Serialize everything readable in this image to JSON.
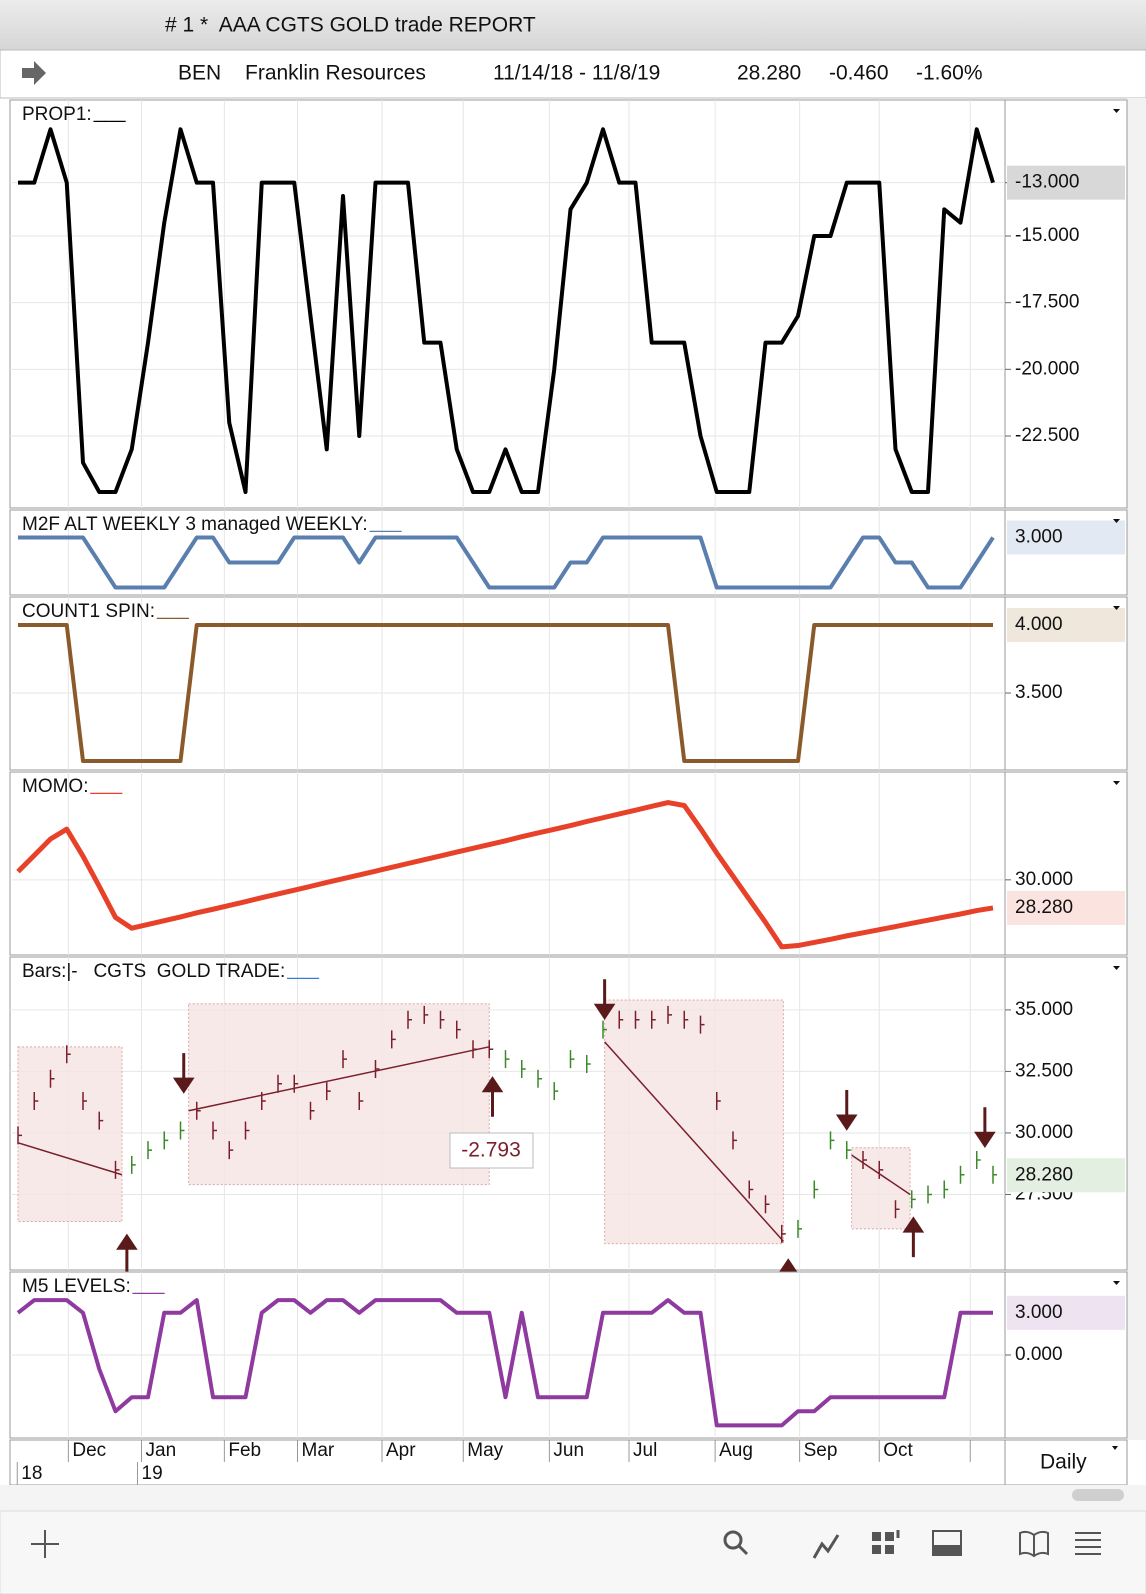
{
  "window": {
    "title": "# 1 *  AAA CGTS GOLD trade REPORT"
  },
  "header": {
    "symbol": "BEN",
    "name": "Franklin Resources",
    "range": "11/14/18 - 11/8/19",
    "last": "28.280",
    "change": "-0.460",
    "percent": "-1.60%"
  },
  "panels": [
    {
      "type": "line",
      "title": "PROP1:",
      "blank": "___",
      "color": "#000000",
      "current_bg": "#d8d8d8",
      "ylim": [
        -25.2,
        -9.9
      ],
      "yticks": [
        {
          "value": -13,
          "label": "-13.000"
        },
        {
          "value": -15,
          "label": "-15.000"
        },
        {
          "value": -17.5,
          "label": "-17.500"
        },
        {
          "value": -20,
          "label": "-20.000"
        },
        {
          "value": -22.5,
          "label": "-22.500"
        }
      ],
      "current": {
        "value": -13,
        "label": "-13.000"
      },
      "values": [
        -13,
        -13,
        -11,
        -13,
        -23.5,
        -24.6,
        -24.6,
        -23,
        -19,
        -14.5,
        -11,
        -13,
        -13,
        -22,
        -24.6,
        -13,
        -13,
        -13,
        -18,
        -23,
        -13.5,
        -22.5,
        -13,
        -13,
        -13,
        -19,
        -19,
        -23,
        -24.6,
        -24.6,
        -23,
        -24.6,
        -24.6,
        -20,
        -14,
        -13,
        -11,
        -13,
        -13,
        -19,
        -19,
        -19,
        -22.5,
        -24.6,
        -24.6,
        -24.6,
        -19,
        -19,
        -18,
        -15,
        -15,
        -13,
        -13,
        -13,
        -23,
        -24.6,
        -24.6,
        -14,
        -14.5,
        -11,
        -13
      ]
    },
    {
      "type": "line",
      "title": "M2F ALT WEEKLY 3 managed WEEKLY:",
      "blank": "___",
      "color": "#5a7fae",
      "current_bg": "#e3e9f2",
      "ylim": [
        0.7,
        4.1
      ],
      "yticks": [],
      "current": {
        "value": 3,
        "label": "3.000"
      },
      "values": [
        3,
        3,
        3,
        3,
        3,
        2,
        1,
        1,
        1,
        1,
        2,
        3,
        3,
        2,
        2,
        2,
        2,
        3,
        3,
        3,
        3,
        2,
        3,
        3,
        3,
        3,
        3,
        3,
        2,
        1,
        1,
        1,
        1,
        1,
        2,
        2,
        3,
        3,
        3,
        3,
        3,
        3,
        3,
        1,
        1,
        1,
        1,
        1,
        1,
        1,
        1,
        2,
        3,
        3,
        2,
        2,
        1,
        1,
        1,
        2,
        3
      ]
    },
    {
      "type": "line",
      "title": "COUNT1 SPIN:",
      "blank": "___",
      "color": "#8b5a2b",
      "current_bg": "#efe6dc",
      "ylim": [
        2.934,
        4.206
      ],
      "yticks": [
        {
          "value": 3.5,
          "label": "3.500"
        }
      ],
      "current": {
        "value": 4,
        "label": "4.000"
      },
      "values": [
        4,
        4,
        4,
        4,
        3,
        3,
        3,
        3,
        3,
        3,
        3,
        4,
        4,
        4,
        4,
        4,
        4,
        4,
        4,
        4,
        4,
        4,
        4,
        4,
        4,
        4,
        4,
        4,
        4,
        4,
        4,
        4,
        4,
        4,
        4,
        4,
        4,
        4,
        4,
        4,
        4,
        3,
        3,
        3,
        3,
        3,
        3,
        3,
        3,
        4,
        4,
        4,
        4,
        4,
        4,
        4,
        4,
        4,
        4,
        4,
        4
      ]
    },
    {
      "type": "line",
      "title": "MOMO:",
      "blank": "___",
      "color": "#e8412a",
      "current_bg": "#fbe3e0",
      "ylim": [
        25.4,
        36.6
      ],
      "yticks": [
        {
          "value": 30,
          "label": "30.000"
        }
      ],
      "current": {
        "value": 28.28,
        "label": "28.280"
      },
      "values": [
        30.5,
        31.5,
        32.5,
        33.1,
        31.45,
        29.6,
        27.7,
        27.04,
        27.27,
        27.5,
        27.73,
        27.98,
        28.2,
        28.43,
        28.66,
        28.91,
        29.14,
        29.37,
        29.6,
        29.84,
        30.07,
        30.3,
        30.53,
        30.77,
        31,
        31.23,
        31.46,
        31.7,
        31.93,
        32.16,
        32.39,
        32.64,
        32.87,
        33.09,
        33.32,
        33.57,
        33.8,
        34.03,
        34.26,
        34.5,
        34.73,
        34.55,
        33.14,
        31.64,
        30.22,
        28.81,
        27.4,
        25.9,
        25.98,
        26.17,
        26.36,
        26.57,
        26.76,
        26.95,
        27.14,
        27.34,
        27.53,
        27.72,
        27.91,
        28.12,
        28.28
      ]
    },
    {
      "type": "bars",
      "title": "Bars:|-   CGTS  GOLD TRADE:",
      "blank": "___",
      "color": "#3a8a2a",
      "trade_color": "#7a1f2b",
      "box_fill": "#f6e3e3",
      "arrow_color": "#5a1a1a",
      "current_bg": "#e3efe0",
      "annotation": "-2.793",
      "ylim": [
        24.43,
        37.15
      ],
      "yticks": [
        {
          "value": 35,
          "label": "35.000"
        },
        {
          "value": 32.5,
          "label": "32.500"
        },
        {
          "value": 30,
          "label": "30.000"
        },
        {
          "value": 27.5,
          "label": "27.500"
        }
      ],
      "current": {
        "value": 28.28,
        "label": "28.280"
      },
      "values": [
        29.9,
        31.3,
        32.2,
        33.2,
        31.3,
        30.5,
        28.5,
        28.7,
        29.3,
        29.7,
        30.1,
        30.9,
        30.1,
        29.3,
        30.1,
        31.3,
        32,
        32,
        30.9,
        31.7,
        33,
        31.3,
        32.6,
        33.8,
        34.6,
        34.8,
        34.6,
        34.2,
        33.4,
        33.4,
        33,
        32.6,
        32.2,
        31.7,
        33,
        32.8,
        34.2,
        34.6,
        34.6,
        34.6,
        34.8,
        34.6,
        34.4,
        31.3,
        29.7,
        27.7,
        27.1,
        25.9,
        26.1,
        27.7,
        29.7,
        29.3,
        28.9,
        28.5,
        26.9,
        27.3,
        27.5,
        27.7,
        28.3,
        28.9,
        28.3
      ],
      "boxes": [
        {
          "x": [
            0,
            6.4
          ],
          "y": [
            26.4,
            33.5
          ],
          "trend": [
            29.6,
            28.3
          ]
        },
        {
          "x": [
            10.5,
            29
          ],
          "y": [
            27.9,
            35.25
          ],
          "trend": [
            30.9,
            33.5
          ]
        },
        {
          "x": [
            36.1,
            47.1
          ],
          "y": [
            25.5,
            35.4
          ],
          "trend": [
            33.7,
            25.6
          ]
        },
        {
          "x": [
            51.3,
            54.9
          ],
          "y": [
            26.1,
            29.4
          ],
          "trend": [
            29.1,
            27.5
          ]
        }
      ],
      "arrows": [
        {
          "x": 10.2,
          "value": 31.7,
          "dir": "down"
        },
        {
          "x": 36.1,
          "value": 34.7,
          "dir": "down"
        },
        {
          "x": 51,
          "value": 30.2,
          "dir": "down"
        },
        {
          "x": 59.5,
          "value": 29.5,
          "dir": "down"
        },
        {
          "x": 6.7,
          "value": 25.8,
          "dir": "up"
        },
        {
          "x": 29.2,
          "value": 32.2,
          "dir": "up"
        },
        {
          "x": 47.4,
          "value": 24.8,
          "dir": "up"
        },
        {
          "x": 55.1,
          "value": 26.5,
          "dir": "up"
        }
      ]
    },
    {
      "type": "line",
      "title": "M5 LEVELS:",
      "blank": "___",
      "color": "#8e3a9e",
      "current_bg": "#eee3f1",
      "ylim": [
        -5.9,
        5.9
      ],
      "yticks": [
        {
          "value": 0,
          "label": "0.000"
        }
      ],
      "current": {
        "value": 3,
        "label": "3.000"
      },
      "values": [
        3,
        3.9,
        3.9,
        3.9,
        3,
        -1,
        -4,
        -3,
        -3,
        3,
        3,
        3.9,
        -3,
        -3,
        -3,
        3,
        3.9,
        3.9,
        3,
        3.9,
        3.9,
        3,
        3.9,
        3.9,
        3.9,
        3.9,
        3.9,
        3,
        3,
        3,
        -3,
        3,
        -3,
        -3,
        -3,
        -3,
        3,
        3,
        3,
        3,
        3.9,
        3,
        3,
        -5,
        -5,
        -5,
        -5,
        -5,
        -4,
        -4,
        -3,
        -3,
        -3,
        -3,
        -3,
        -3,
        -3,
        -3,
        3,
        3,
        3
      ]
    }
  ],
  "xaxis": {
    "months": [
      {
        "value": 3.1,
        "label": "Dec"
      },
      {
        "value": 7.6,
        "label": "Jan"
      },
      {
        "value": 12.7,
        "label": "Feb"
      },
      {
        "value": 17.2,
        "label": "Mar"
      },
      {
        "value": 22.4,
        "label": "Apr"
      },
      {
        "value": 27.4,
        "label": "May"
      },
      {
        "value": 32.7,
        "label": "Jun"
      },
      {
        "value": 37.6,
        "label": "Jul"
      },
      {
        "value": 42.9,
        "label": "Aug"
      },
      {
        "value": 48.1,
        "label": "Sep"
      },
      {
        "value": 53,
        "label": "Oct"
      },
      {
        "value": 58.6,
        "label": ""
      }
    ],
    "years": [
      {
        "value": 0.2,
        "label": "18"
      },
      {
        "value": 7.6,
        "label": "19"
      }
    ]
  },
  "footer": {
    "period": "Daily"
  }
}
